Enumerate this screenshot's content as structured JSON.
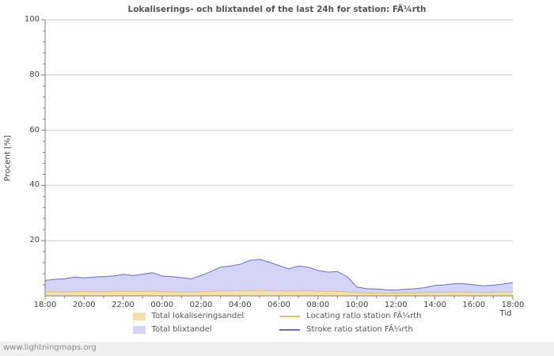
{
  "watermark": "www.lightningmaps.org",
  "chart_data": {
    "type": "area",
    "title": "Lokaliserings- och blixtandel of the last 24h for station: FÃ¼rth",
    "xlabel": "Tid",
    "ylabel": "Procent  [%]",
    "ylim": [
      0,
      100
    ],
    "y_tick_values": [
      20,
      40,
      60,
      80,
      100
    ],
    "y_minor_step": 4,
    "grid": "horizontal",
    "legend_position": "bottom",
    "x_tick_labels": [
      "18:00",
      "20:00",
      "22:00",
      "00:00",
      "02:00",
      "04:00",
      "06:00",
      "08:00",
      "10:00",
      "12:00",
      "14:00",
      "16:00",
      "18:00"
    ],
    "x_tick_hours": [
      0,
      2,
      4,
      6,
      8,
      10,
      12,
      14,
      16,
      18,
      20,
      22,
      24
    ],
    "x_minor_hours": [
      1,
      3,
      5,
      7,
      9,
      11,
      13,
      15,
      17,
      19,
      21,
      23
    ],
    "sample_interval_hours": 0.5,
    "series": [
      {
        "name": "Total blixtandel",
        "type": "area",
        "fill": "#d4d4f6",
        "edge": "#6c6cc4",
        "values": [
          5.6,
          6.0,
          6.2,
          6.8,
          6.5,
          6.8,
          7.0,
          7.2,
          7.8,
          7.4,
          7.8,
          8.4,
          7.2,
          7.0,
          6.6,
          6.2,
          7.4,
          8.8,
          10.4,
          10.8,
          11.4,
          12.8,
          13.2,
          12.2,
          11.0,
          9.8,
          10.8,
          10.4,
          9.2,
          8.6,
          8.8,
          7.0,
          3.2,
          2.6,
          2.5,
          2.2,
          2.1,
          2.4,
          2.6,
          3.0,
          3.8,
          4.0,
          4.4,
          4.4,
          4.0,
          3.6,
          3.9,
          4.3,
          4.8
        ]
      },
      {
        "name": "Total lokaliseringsandel",
        "type": "area",
        "fill": "#f3e0aa",
        "edge": "#dfc070",
        "values": [
          1.5,
          1.5,
          1.4,
          1.5,
          1.6,
          1.5,
          1.5,
          1.6,
          1.7,
          1.6,
          1.6,
          1.7,
          1.5,
          1.5,
          1.4,
          1.4,
          1.5,
          1.6,
          1.8,
          1.8,
          1.9,
          2.0,
          2.0,
          1.9,
          1.8,
          1.7,
          1.8,
          1.8,
          1.7,
          1.6,
          1.6,
          1.5,
          1.2,
          1.0,
          1.0,
          1.0,
          1.0,
          1.1,
          1.1,
          1.2,
          1.3,
          1.3,
          1.4,
          1.4,
          1.3,
          1.2,
          1.3,
          1.4,
          1.4
        ]
      }
    ],
    "legend": [
      {
        "label": "Total lokaliseringsandel",
        "swatch": "area",
        "color": "#f3e0aa"
      },
      {
        "label": "Locating ratio station FÃ¼rth",
        "swatch": "line",
        "color": "#dfc070"
      },
      {
        "label": "Total blixtandel",
        "swatch": "area",
        "color": "#d4d4f6"
      },
      {
        "label": "Stroke ratio station FÃ¼rth",
        "swatch": "line",
        "color": "#6c6cc4"
      }
    ]
  }
}
